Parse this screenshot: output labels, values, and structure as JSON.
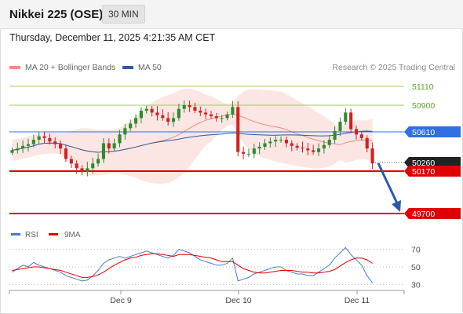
{
  "header": {
    "title": "Nikkei 225 (OSE)",
    "timeframe": "30 MIN",
    "datetime": "Thursday, December 11, 2025 4:21:35 AM CET"
  },
  "legend": {
    "bollinger_label": "MA 20 + Bollinger Bands",
    "ma50_label": "MA 50",
    "credit": "Research © 2025 Trading Central"
  },
  "colors": {
    "bollinger": "#f28b82",
    "ma50": "#2e5aa7",
    "up_candle": "#2e8b2e",
    "down_candle": "#d32020",
    "resistance": "#9fce6a",
    "pivot": "#2f6fe0",
    "support": "#e00000",
    "last_price": "#222222",
    "arrow": "#2a5ca8",
    "rsi": "#4a78d0",
    "rsi_ma": "#e00000"
  },
  "chart_data": [
    {
      "type": "candlestick",
      "title": "Nikkei 225 (OSE)",
      "timeframe": "30 MIN",
      "x_labels": [
        "Dec 9",
        "Dec 10",
        "Dec 11"
      ],
      "ylim": [
        49700,
        51200
      ],
      "levels": [
        {
          "value": 51110,
          "label": "51110",
          "kind": "resistance"
        },
        {
          "value": 50900,
          "label": "50900",
          "kind": "resistance"
        },
        {
          "value": 50610,
          "label": "50610",
          "kind": "pivot"
        },
        {
          "value": 50260,
          "label": "50260",
          "kind": "last_price"
        },
        {
          "value": 50170,
          "label": "50170",
          "kind": "support"
        },
        {
          "value": 49700,
          "label": "49700",
          "kind": "support"
        }
      ],
      "series": [
        {
          "name": "MA 20 + Bollinger Bands",
          "kind": "bollinger"
        },
        {
          "name": "MA 50",
          "kind": "ma"
        }
      ],
      "close_path": [
        50400,
        50420,
        50450,
        50470,
        50520,
        50560,
        50540,
        50500,
        50470,
        50420,
        50300,
        50250,
        50200,
        50160,
        50200,
        50250,
        50300,
        50480,
        50420,
        50480,
        50580,
        50650,
        50700,
        50760,
        50840,
        50860,
        50820,
        50790,
        50760,
        50720,
        50760,
        50860,
        50900,
        50880,
        50840,
        50820,
        50800,
        50780,
        50760,
        50760,
        50800,
        50880,
        50380,
        50360,
        50360,
        50420,
        50440,
        50480,
        50500,
        50520,
        50520,
        50480,
        50450,
        50430,
        50420,
        50400,
        50380,
        50420,
        50460,
        50520,
        50620,
        50720,
        50820,
        50640,
        50580,
        50540,
        50420,
        50250
      ],
      "projection": {
        "from": 50270,
        "to": 49700
      }
    },
    {
      "type": "line",
      "title": "RSI",
      "series": [
        {
          "name": "RSI"
        },
        {
          "name": "9MA"
        }
      ],
      "y_ticks": [
        70,
        50,
        30
      ],
      "rsi": [
        44,
        48,
        52,
        50,
        55,
        52,
        50,
        48,
        46,
        44,
        40,
        38,
        36,
        34,
        35,
        40,
        46,
        54,
        58,
        60,
        62,
        60,
        62,
        64,
        66,
        68,
        66,
        64,
        62,
        60,
        63,
        70,
        68,
        66,
        62,
        58,
        56,
        54,
        52,
        52,
        54,
        60,
        34,
        36,
        38,
        42,
        44,
        46,
        48,
        50,
        50,
        46,
        44,
        42,
        42,
        40,
        40,
        44,
        48,
        52,
        60,
        66,
        72,
        64,
        58,
        52,
        40,
        32
      ],
      "ma9": [
        46,
        47,
        48,
        49,
        50,
        50,
        49,
        48,
        47,
        46,
        44,
        42,
        40,
        38,
        38,
        39,
        41,
        44,
        48,
        52,
        55,
        58,
        60,
        61,
        63,
        64,
        65,
        65,
        64,
        63,
        62,
        64,
        64,
        64,
        63,
        62,
        61,
        60,
        58,
        56,
        56,
        56,
        52,
        48,
        46,
        44,
        43,
        43,
        44,
        45,
        46,
        46,
        46,
        45,
        44,
        44,
        43,
        43,
        44,
        45,
        47,
        51,
        55,
        58,
        60,
        60,
        58,
        54
      ]
    }
  ]
}
